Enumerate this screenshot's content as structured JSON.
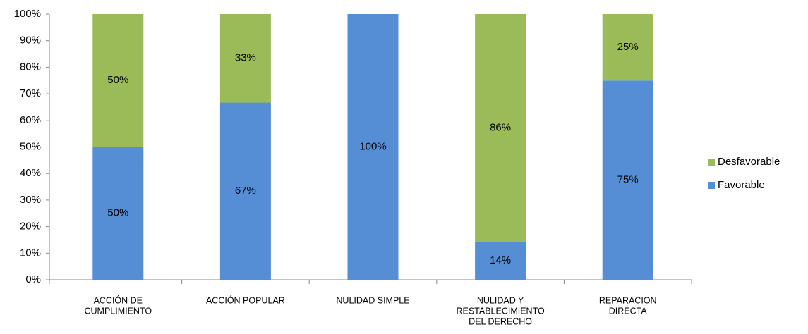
{
  "chart_data": {
    "type": "stacked_bar",
    "categories": [
      [
        "ACCIÓN DE",
        "CUMPLIMIENTO"
      ],
      [
        "ACCIÓN POPULAR"
      ],
      [
        "NULIDAD SIMPLE"
      ],
      [
        "NULIDAD Y",
        "RESTABLECIMIENTO",
        "DEL DERECHO"
      ],
      [
        "REPARACION",
        "DIRECTA"
      ]
    ],
    "series": [
      {
        "name": "Favorable",
        "color": "#558ed5",
        "values": [
          50,
          66.7,
          100,
          14.3,
          75
        ],
        "value_labels": [
          "50%",
          "67%",
          "100%",
          "14%",
          "75%"
        ]
      },
      {
        "name": "Desfavorable",
        "color": "#9bbb59",
        "values": [
          50,
          33.3,
          0,
          85.7,
          25
        ],
        "value_labels": [
          "50%",
          "33%",
          null,
          "86%",
          "25%"
        ]
      }
    ],
    "ylim": [
      0,
      100
    ],
    "yticks": [
      {
        "value": 0,
        "label": "0%"
      },
      {
        "value": 10,
        "label": "10%"
      },
      {
        "value": 20,
        "label": "20%"
      },
      {
        "value": 30,
        "label": "30%"
      },
      {
        "value": 40,
        "label": "40%"
      },
      {
        "value": 50,
        "label": "50%"
      },
      {
        "value": 60,
        "label": "60%"
      },
      {
        "value": 70,
        "label": "70%"
      },
      {
        "value": 80,
        "label": "80%"
      },
      {
        "value": 90,
        "label": "90%"
      },
      {
        "value": 100,
        "label": "100%"
      }
    ],
    "legend": "right"
  }
}
